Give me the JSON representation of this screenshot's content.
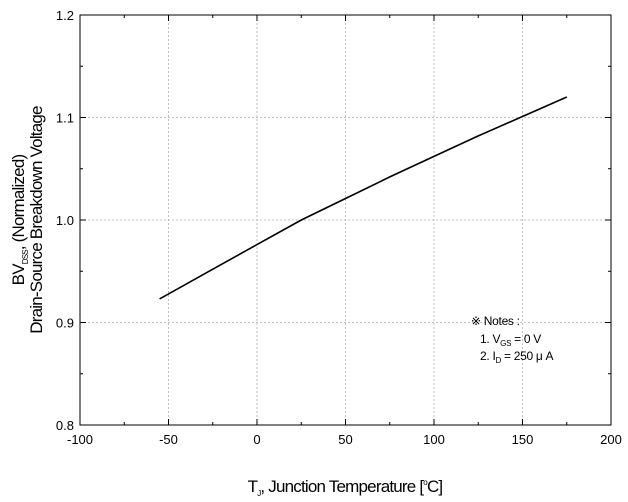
{
  "chart_data": {
    "type": "line",
    "xlim": [
      -100,
      200
    ],
    "ylim": [
      0.8,
      1.2
    ],
    "x_ticks": [
      "-100",
      "-50",
      "0",
      "50",
      "100",
      "150",
      "200"
    ],
    "y_ticks": [
      "0.8",
      "0.9",
      "1.0",
      "1.1",
      "1.2"
    ],
    "grid": true,
    "xlabel": {
      "main": "T",
      "sub": "J",
      "rest": ", Junction Temperature [",
      "sup": "o",
      "end": "C]"
    },
    "ylabel": {
      "line1_main": "BV",
      "line1_sub": "DSS",
      "line1_rest": ", (Normalized)",
      "line2": "Drain-Source Breakdown Voltage"
    },
    "series": [
      {
        "x": [
          -55,
          -25,
          0,
          25,
          50,
          75,
          100,
          125,
          150,
          175
        ],
        "y": [
          0.923,
          0.952,
          0.976,
          1.0,
          1.021,
          1.042,
          1.062,
          1.082,
          1.101,
          1.12
        ]
      }
    ],
    "notes": {
      "title": "※ Notes :",
      "line1_prefix": "1. V",
      "line1_sub": "GS",
      "line1_suffix": " = 0 V",
      "line2_prefix": "2. I",
      "line2_sub": "D",
      "line2_suffix": " = 250 μ A"
    }
  }
}
